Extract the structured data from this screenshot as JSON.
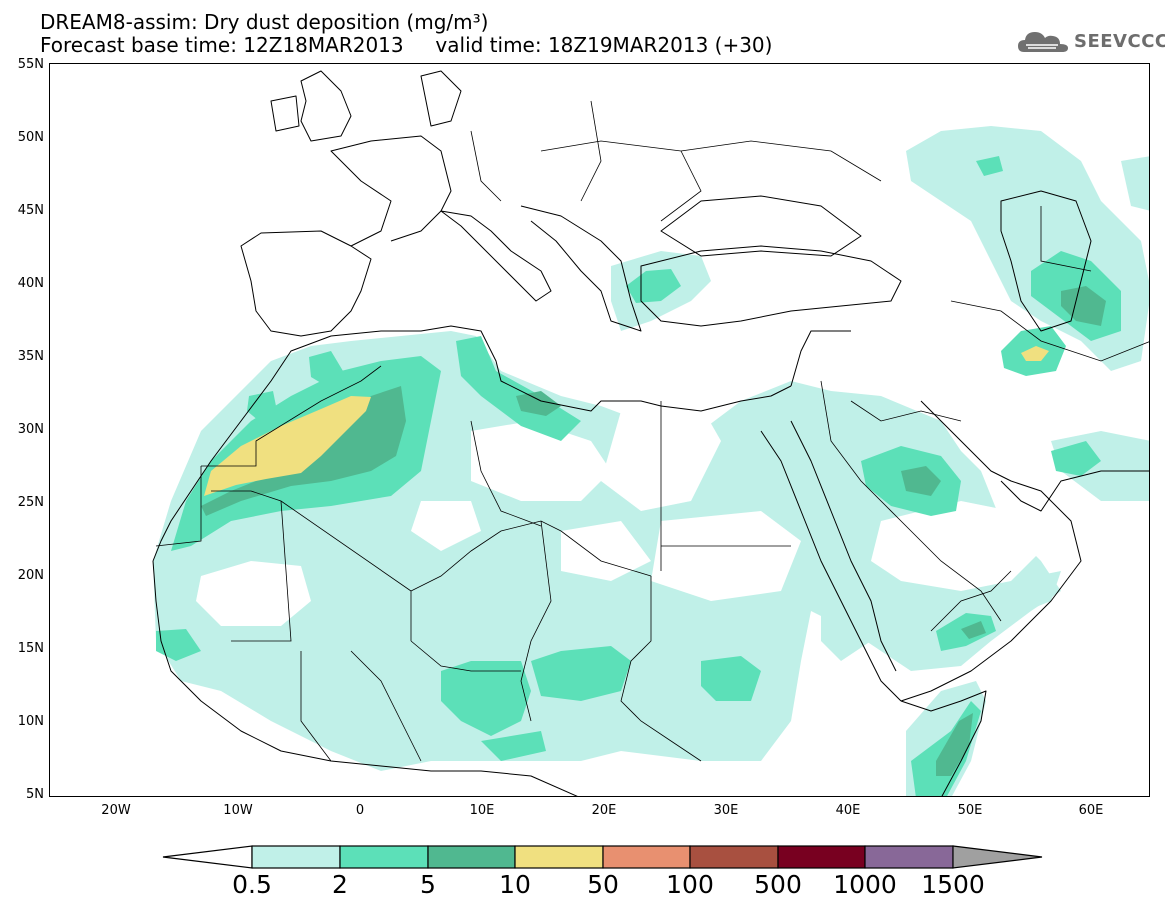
{
  "header": {
    "title_line1": "DREAM8-assim: Dry dust deposition (mg/m³)",
    "title_line2": "Forecast base time: 12Z18MAR2013     valid time: 18Z19MAR2013 (+30)",
    "logo_text": "SEEVCCC"
  },
  "map": {
    "projection": "lat-lon",
    "lon_range": [
      -25,
      65
    ],
    "lat_range": [
      5,
      55
    ],
    "lat_labels": [
      "55N",
      "50N",
      "45N",
      "40N",
      "35N",
      "30N",
      "25N",
      "20N",
      "15N",
      "10N",
      "5N"
    ],
    "lon_labels": [
      "20W",
      "10W",
      "0",
      "10E",
      "20E",
      "30E",
      "40E",
      "50E",
      "60E"
    ]
  },
  "colorbar": {
    "labels": [
      "0.5",
      "2",
      "5",
      "10",
      "50",
      "100",
      "500",
      "1000",
      "1500"
    ],
    "colors": [
      "#c0f0e8",
      "#5ce0b8",
      "#50b890",
      "#f0e080",
      "#e89070",
      "#a85040",
      "#780020",
      "#886898",
      "#a0a0a0"
    ]
  }
}
